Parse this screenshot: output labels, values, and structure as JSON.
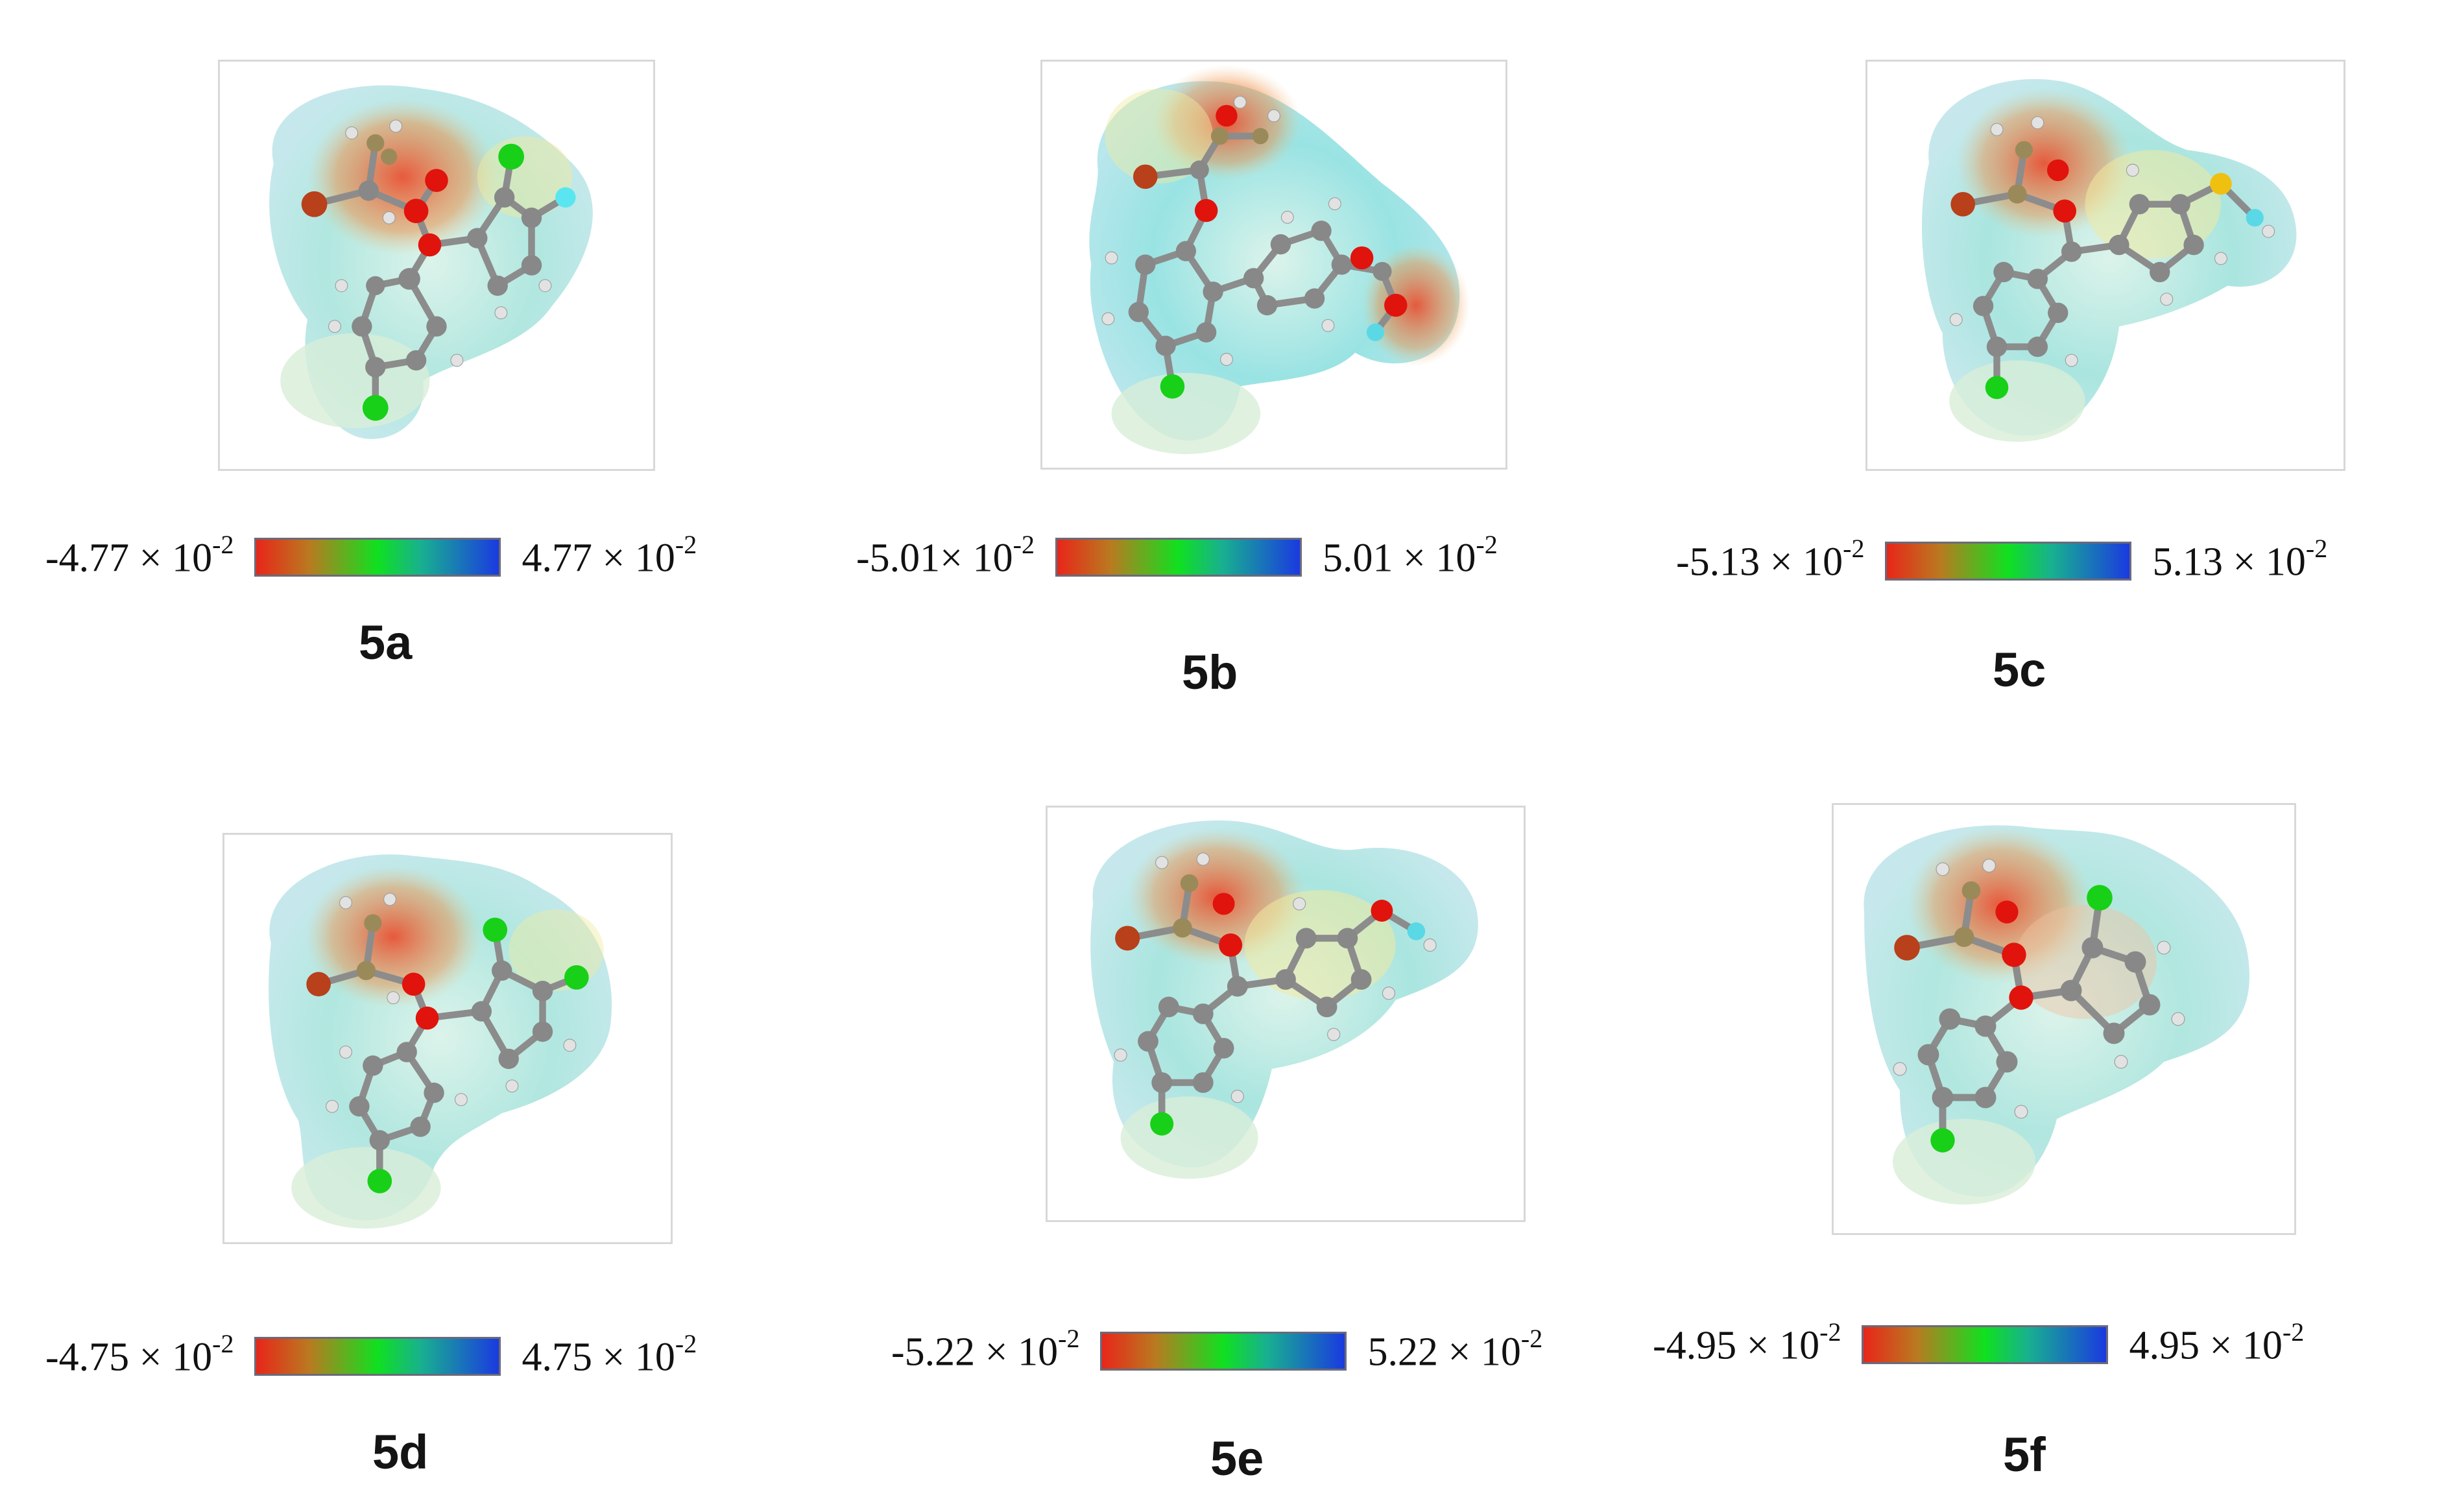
{
  "figure": {
    "panels": [
      {
        "id": "5a",
        "label": "5a",
        "min_value": "-4.77 × 10",
        "min_exp": "-2",
        "max_value": "4.77 × 10",
        "max_exp": "-2",
        "substituents": [
          "Cl",
          "F"
        ]
      },
      {
        "id": "5b",
        "label": "5b",
        "min_value": "-5.01× 10",
        "min_exp": "-2",
        "max_value": "5.01 × 10",
        "max_exp": "-2",
        "substituents": [
          "COOCH3"
        ]
      },
      {
        "id": "5c",
        "label": "5c",
        "min_value": "-5.13 × 10",
        "min_exp": "-2",
        "max_value": "5.13 × 10",
        "max_exp": "-2",
        "substituents": [
          "SCH3"
        ]
      },
      {
        "id": "5d",
        "label": "5d",
        "min_value": "-4.75 × 10",
        "min_exp": "-2",
        "max_value": "4.75 × 10",
        "max_exp": "-2",
        "substituents": [
          "Cl",
          "Cl"
        ]
      },
      {
        "id": "5e",
        "label": "5e",
        "min_value": "-5.22 × 10",
        "min_exp": "-2",
        "max_value": "5.22 × 10",
        "max_exp": "-2",
        "substituents": [
          "OCH3"
        ]
      },
      {
        "id": "5f",
        "label": "5f",
        "min_value": "-4.95 × 10",
        "min_exp": "-2",
        "max_value": "4.95 × 10",
        "max_exp": "-2",
        "substituents": [
          "Cl"
        ]
      }
    ],
    "colors": {
      "scale_red": "#e8261a",
      "scale_green": "#10e020",
      "scale_blue": "#1a3ae0",
      "carbon": "#8a8a8a",
      "hydrogen": "#e6e6e6",
      "oxygen": "#e01a10",
      "chlorine": "#18d018",
      "fluorine": "#5ae6f0",
      "sulfur": "#f0c010",
      "bromine": "#b8401a"
    }
  }
}
